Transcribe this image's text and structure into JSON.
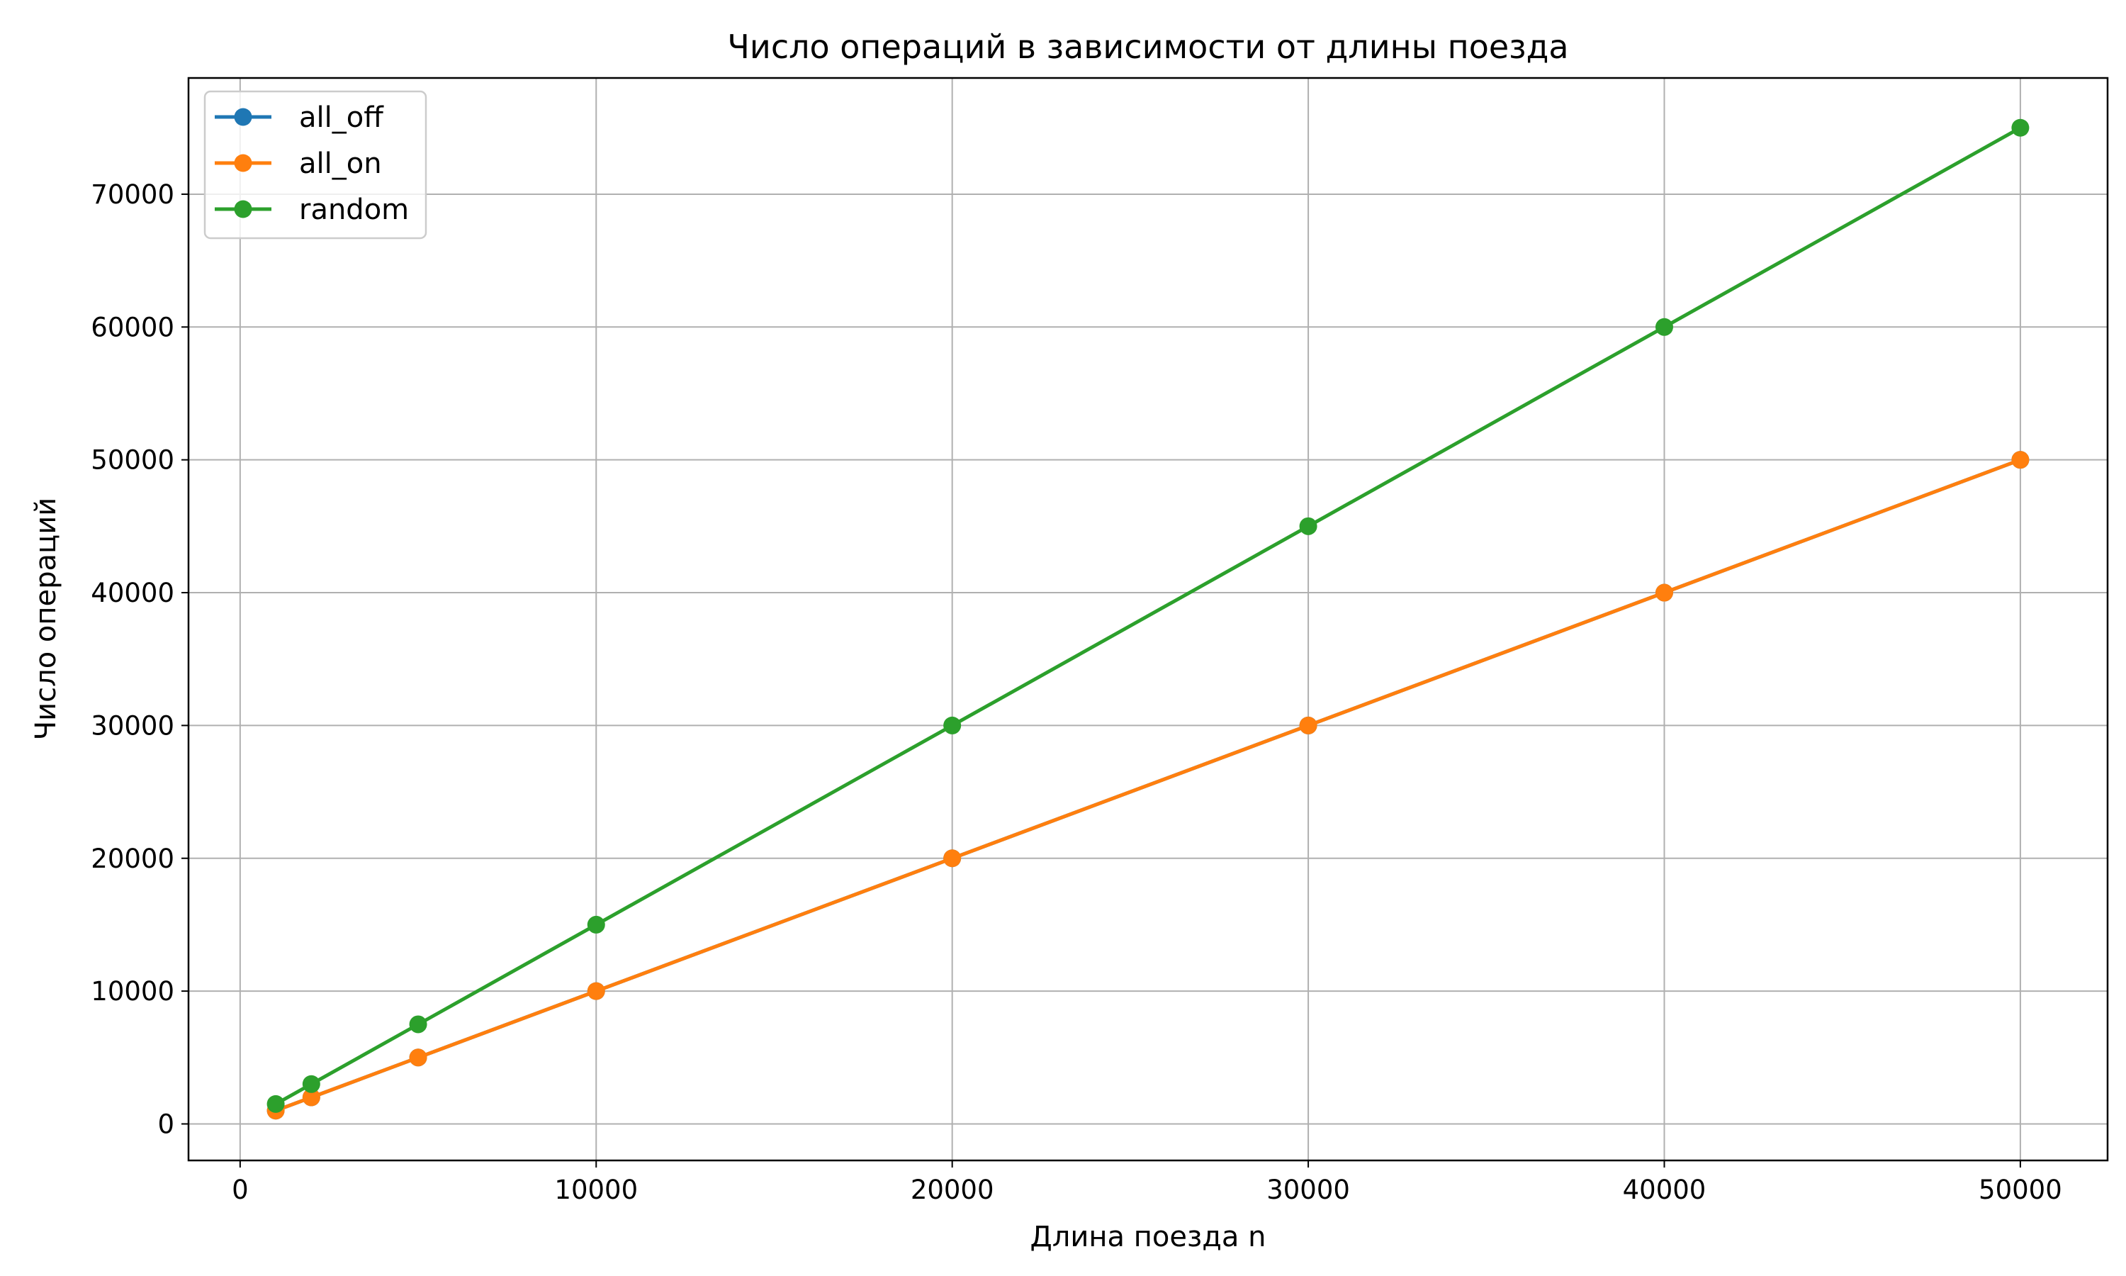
{
  "chart_data": {
    "type": "line",
    "title": "Число операций в зависимости от длины поезда",
    "xlabel": "Длина поезда n",
    "ylabel": "Число операций",
    "xlim": [
      -1450,
      52450
    ],
    "ylim": [
      -2750,
      78750
    ],
    "xticks": [
      0,
      10000,
      20000,
      30000,
      40000,
      50000
    ],
    "yticks": [
      0,
      10000,
      20000,
      30000,
      40000,
      50000,
      60000,
      70000
    ],
    "grid": true,
    "legend_position": "top-left",
    "x": [
      1000,
      2000,
      5000,
      10000,
      20000,
      30000,
      40000,
      50000
    ],
    "series": [
      {
        "name": "all_off",
        "color": "#1f77b4",
        "values": [
          1000,
          2000,
          5000,
          10000,
          20000,
          30000,
          40000,
          50000
        ]
      },
      {
        "name": "all_on",
        "color": "#ff7f0e",
        "values": [
          1000,
          2000,
          5000,
          10000,
          20000,
          30000,
          40000,
          50000
        ]
      },
      {
        "name": "random",
        "color": "#2ca02c",
        "values": [
          1500,
          3000,
          7500,
          15000,
          30000,
          45000,
          60000,
          75000
        ]
      }
    ]
  }
}
